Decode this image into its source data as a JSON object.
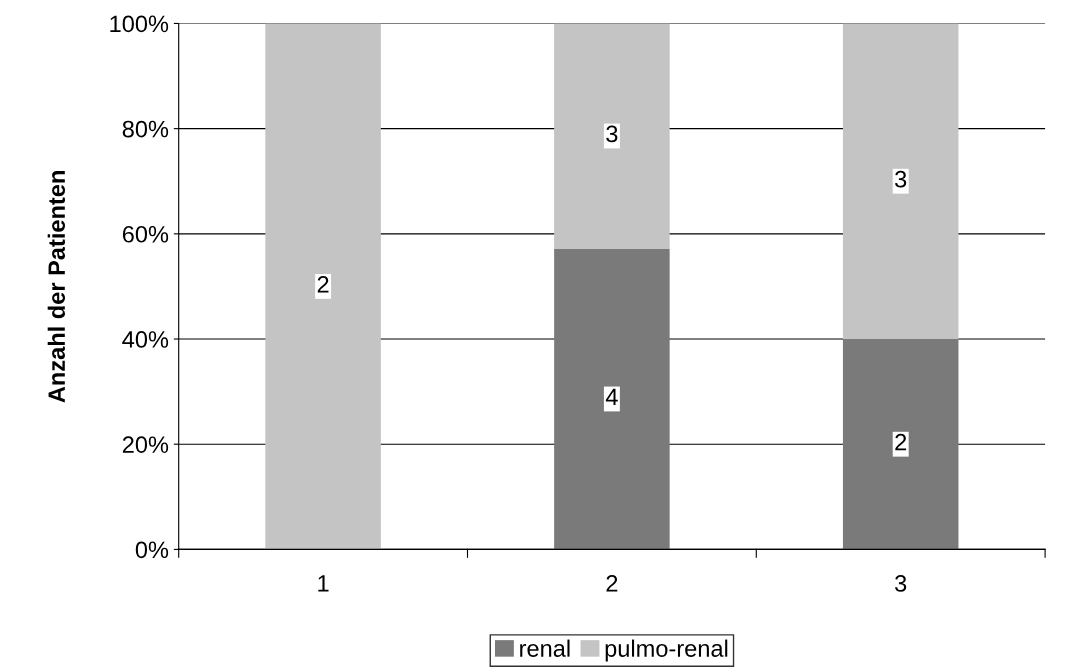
{
  "chart_data": {
    "type": "bar",
    "stacked": true,
    "ylabel": "Anzahl der Patienten",
    "categories": [
      "1",
      "2",
      "3"
    ],
    "series": [
      {
        "name": "renal",
        "color": "#7a7a7a",
        "values": [
          0,
          57.1,
          40
        ]
      },
      {
        "name": "pulmo-renal",
        "color": "#c4c4c4",
        "values": [
          100,
          42.9,
          60
        ]
      }
    ],
    "annotations": [
      {
        "text": "2",
        "x": "1",
        "y": 50
      },
      {
        "text": "4",
        "x": "2",
        "y": 28.6
      },
      {
        "text": "3",
        "x": "2",
        "y": 78.6
      },
      {
        "text": "2",
        "x": "3",
        "y": 20
      },
      {
        "text": "3",
        "x": "3",
        "y": 70
      }
    ],
    "ylim": [
      0,
      100
    ],
    "yticks": [
      {
        "value": 0,
        "label": "0%"
      },
      {
        "value": 20,
        "label": "20%"
      },
      {
        "value": 40,
        "label": "40%"
      },
      {
        "value": 60,
        "label": "60%"
      },
      {
        "value": 80,
        "label": "80%"
      },
      {
        "value": 100,
        "label": "100%"
      }
    ],
    "grid": "y",
    "legend": "bottom"
  }
}
